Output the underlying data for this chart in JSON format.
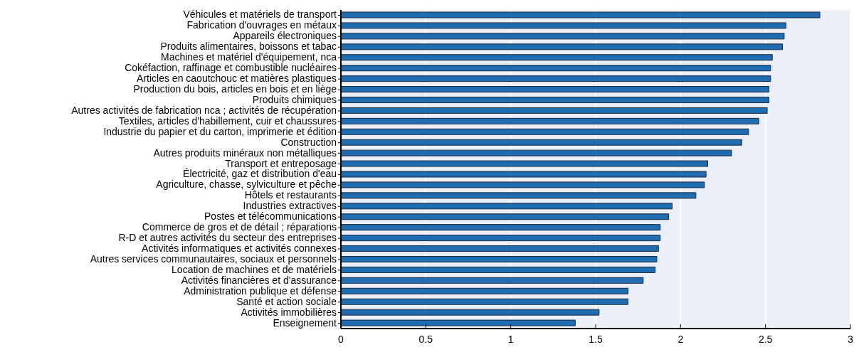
{
  "chart_data": {
    "type": "bar",
    "orientation": "horizontal",
    "categories": [
      "Véhicules et matériels de transport",
      "Fabrication d'ouvrages en métaux",
      "Appareils électroniques",
      "Produits alimentaires, boissons et tabac",
      "Machines et matériel d'équipement, nca",
      "Cokéfaction, raffinage et combustible nucléaires",
      "Articles en caoutchouc et matières plastiques",
      "Production du bois, articles en bois et en liège",
      "Produits chimiques",
      "Autres activités de fabrication nca ; activités de récupération",
      "Textiles, articles d'habillement, cuir et chaussures",
      "Industrie du papier et du carton, imprimerie et édition",
      "Construction",
      "Autres produits minéraux non métalliques",
      "Transport et entreposage",
      "Électricité, gaz et distribution d'eau",
      "Agriculture, chasse, sylviculture et pêche",
      "Hôtels et restaurants",
      "Industries extractives",
      "Postes et télécommunications",
      "Commerce de gros et de détail ; réparations",
      "R-D et autres activités du secteur des entreprises",
      "Activités informatiques et activités connexes",
      "Autres services communautaires, sociaux et personnels",
      "Location de machines et de matériels",
      "Activités financières et d'assurance",
      "Administration publique et défense",
      "Santé et action sociale",
      "Activités immobilières",
      "Enseignement"
    ],
    "values": [
      2.82,
      2.62,
      2.61,
      2.6,
      2.54,
      2.53,
      2.53,
      2.52,
      2.52,
      2.51,
      2.46,
      2.4,
      2.36,
      2.3,
      2.16,
      2.15,
      2.14,
      2.09,
      1.95,
      1.93,
      1.88,
      1.88,
      1.87,
      1.86,
      1.85,
      1.78,
      1.69,
      1.69,
      1.52,
      1.38
    ],
    "color": "#1f6cb0",
    "xlim": [
      0,
      3
    ],
    "xticks": [
      0,
      0.5,
      1,
      1.5,
      2,
      2.5,
      3
    ],
    "grid": "x"
  }
}
